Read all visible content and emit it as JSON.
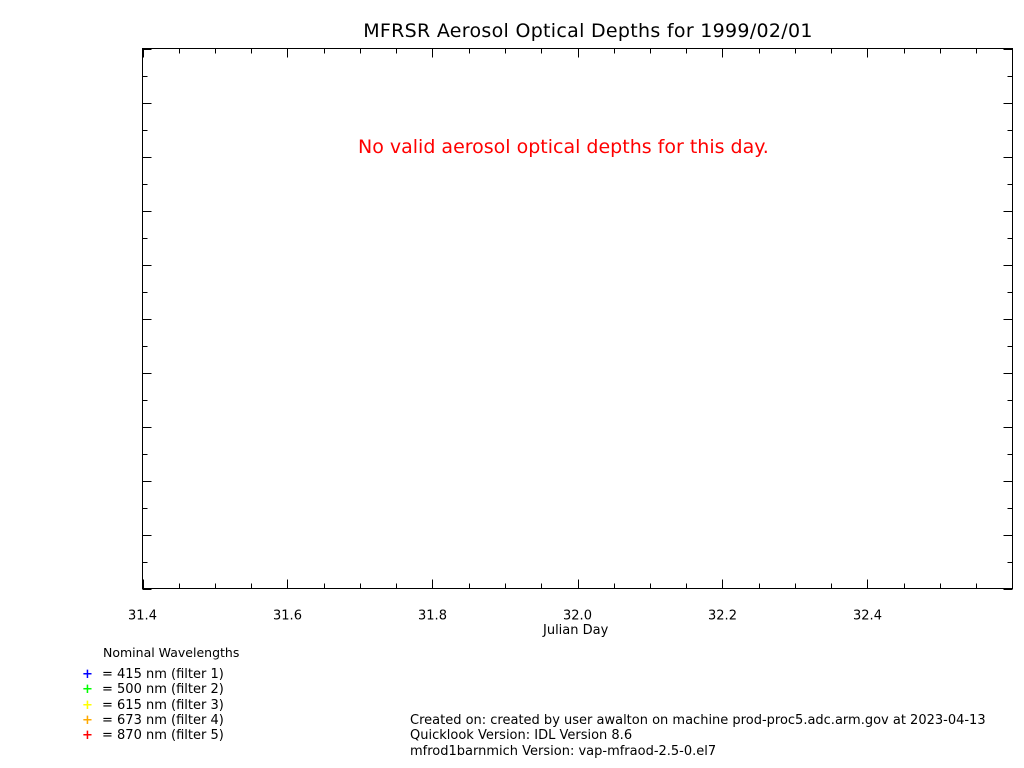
{
  "chart_data": {
    "type": "scatter",
    "title": "MFRSR Aerosol Optical Depths for 1999/02/01",
    "xlabel": "Julian Day",
    "ylabel": "",
    "xlim": [
      31.4,
      32.6
    ],
    "x_ticks": [
      "31.4",
      "31.6",
      "31.8",
      "32.0",
      "32.2",
      "32.4"
    ],
    "series": [],
    "annotation": "No valid aerosol optical depths for this day.",
    "annotation_color": "#ff0000"
  },
  "legend": {
    "title": "Nominal Wavelengths",
    "items": [
      {
        "symbol": "+",
        "color": "#0000ff",
        "label": "= 415 nm (filter 1)"
      },
      {
        "symbol": "+",
        "color": "#00ff00",
        "label": "= 500 nm (filter 2)"
      },
      {
        "symbol": "+",
        "color": "#ffff00",
        "label": "= 615 nm (filter 3)"
      },
      {
        "symbol": "+",
        "color": "#ffaa00",
        "label": "= 673 nm (filter 4)"
      },
      {
        "symbol": "+",
        "color": "#ff0000",
        "label": "= 870 nm (filter 5)"
      }
    ]
  },
  "footer": {
    "created": "Created on: created by user awalton on machine prod-proc5.adc.arm.gov at 2023-04-13",
    "quicklook": "Quicklook Version: IDL Version 8.6",
    "version": "mfrod1barnmich Version: vap-mfraod-2.5-0.el7"
  }
}
